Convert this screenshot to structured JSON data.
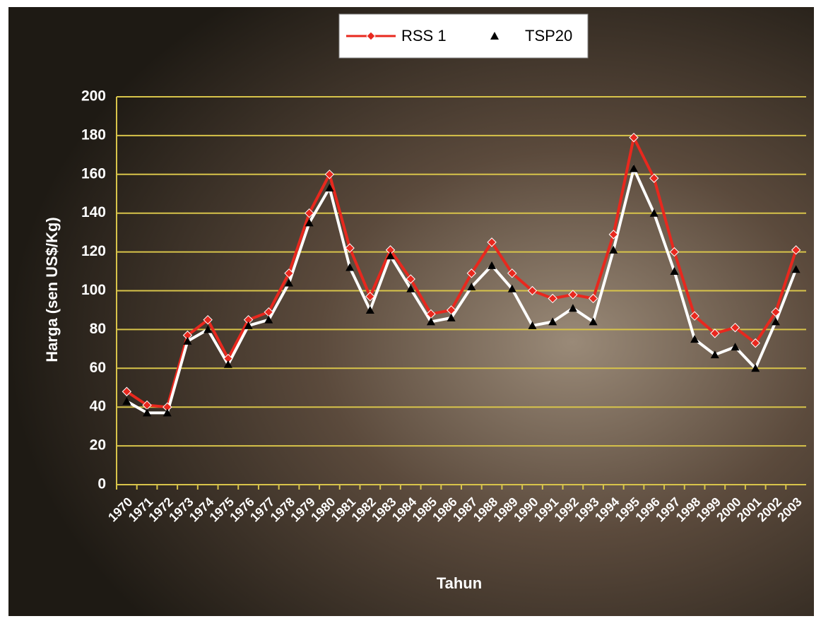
{
  "chart_data": {
    "type": "line",
    "x_label": "Tahun",
    "y_label": "Harga (sen US$/Kg)",
    "categories": [
      "1970",
      "1971",
      "1972",
      "1973",
      "1974",
      "1975",
      "1976",
      "1977",
      "1978",
      "1979",
      "1980",
      "1981",
      "1982",
      "1983",
      "1984",
      "1985",
      "1986",
      "1987",
      "1988",
      "1989",
      "1990",
      "1991",
      "1992",
      "1993",
      "1994",
      "1995",
      "1996",
      "1997",
      "1998",
      "1999",
      "2000",
      "2001",
      "2002",
      "2003"
    ],
    "series": [
      {
        "name": "RSS 1",
        "color": "#e8281e",
        "marker": "diamond",
        "marker_color": "#e8281e",
        "values": [
          48,
          41,
          40,
          77,
          85,
          65,
          85,
          89,
          109,
          140,
          160,
          122,
          97,
          121,
          106,
          88,
          90,
          109,
          125,
          109,
          100,
          96,
          98,
          96,
          129,
          179,
          158,
          120,
          87,
          78,
          81,
          73,
          89,
          121
        ]
      },
      {
        "name": "TSP20",
        "color": "#ffffff",
        "marker": "triangle",
        "marker_color": "#000000",
        "values": [
          43,
          37,
          37,
          74,
          80,
          62,
          82,
          85,
          104,
          135,
          153,
          112,
          90,
          118,
          101,
          84,
          86,
          102,
          113,
          101,
          82,
          84,
          91,
          84,
          121,
          163,
          140,
          110,
          75,
          67,
          71,
          60,
          84,
          111
        ]
      }
    ],
    "ylim": [
      0,
      200
    ],
    "yticks": [
      0,
      20,
      40,
      60,
      80,
      100,
      120,
      140,
      160,
      180,
      200
    ],
    "grid": true,
    "grid_color": "#d8c44a",
    "legend": "top"
  }
}
